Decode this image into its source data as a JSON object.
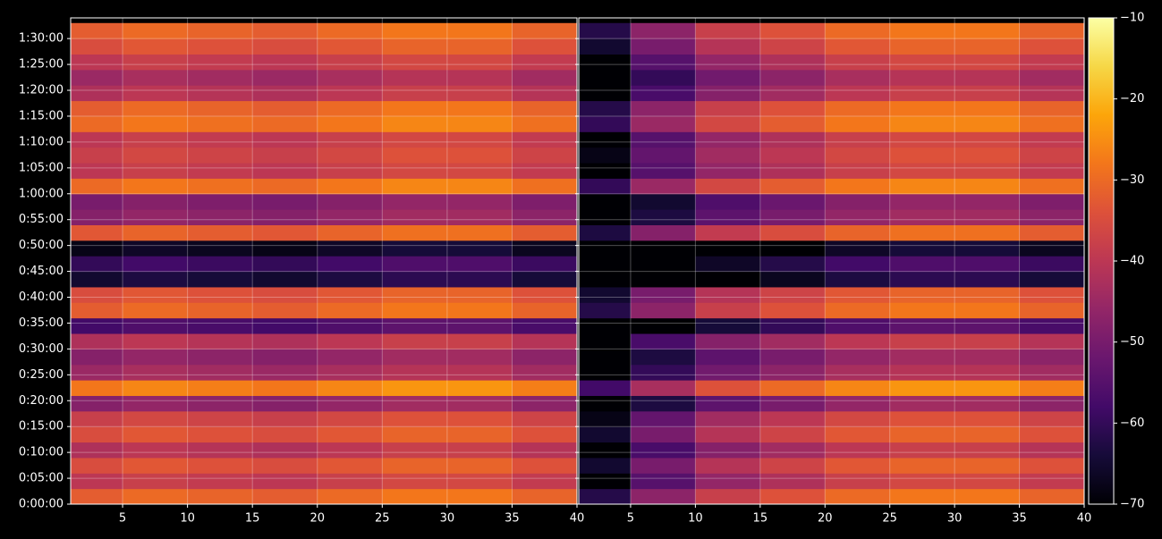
{
  "chart_data": {
    "type": "heatmap",
    "colormap": "inferno",
    "grid": true,
    "x_edges": [
      1,
      5,
      10,
      15,
      20,
      25,
      30,
      35,
      40
    ],
    "y_edges": [
      0,
      180,
      360,
      540,
      720,
      900,
      1080,
      1260,
      1440,
      1620,
      1800,
      1980,
      2160,
      2340,
      2520,
      2700,
      2880,
      3060,
      3240,
      3420,
      3600,
      3780,
      3960,
      4140,
      4320,
      4500,
      4680,
      4860,
      5040,
      5220,
      5400,
      5580
    ],
    "xlim": [
      1,
      40
    ],
    "xticks": [
      5,
      10,
      15,
      20,
      25,
      30,
      35,
      40
    ],
    "ylim": [
      0,
      5640
    ],
    "yticks": [
      {
        "value": 0,
        "label": "0:00:00"
      },
      {
        "value": 300,
        "label": "0:05:00"
      },
      {
        "value": 600,
        "label": "0:10:00"
      },
      {
        "value": 900,
        "label": "0:15:00"
      },
      {
        "value": 1200,
        "label": "0:20:00"
      },
      {
        "value": 1500,
        "label": "0:25:00"
      },
      {
        "value": 1800,
        "label": "0:30:00"
      },
      {
        "value": 2100,
        "label": "0:35:00"
      },
      {
        "value": 2400,
        "label": "0:40:00"
      },
      {
        "value": 2700,
        "label": "0:45:00"
      },
      {
        "value": 3000,
        "label": "0:50:00"
      },
      {
        "value": 3300,
        "label": "0:55:00"
      },
      {
        "value": 3600,
        "label": "1:00:00"
      },
      {
        "value": 3900,
        "label": "1:05:00"
      },
      {
        "value": 4200,
        "label": "1:10:00"
      },
      {
        "value": 4500,
        "label": "1:15:00"
      },
      {
        "value": 4800,
        "label": "1:20:00"
      },
      {
        "value": 5100,
        "label": "1:25:00"
      },
      {
        "value": 5400,
        "label": "1:30:00"
      }
    ],
    "clim": [
      -70,
      -10
    ],
    "cticks": [
      {
        "value": -10,
        "label": "−10"
      },
      {
        "value": -20,
        "label": "−20"
      },
      {
        "value": -30,
        "label": "−30"
      },
      {
        "value": -40,
        "label": "−40"
      },
      {
        "value": -50,
        "label": "−50"
      },
      {
        "value": -60,
        "label": "−60"
      },
      {
        "value": -70,
        "label": "−70"
      }
    ],
    "panels": [
      {
        "z": [
          [
            -32,
            -30,
            -31,
            -32,
            -30,
            -28,
            -28,
            -31
          ],
          [
            -40,
            -38,
            -39,
            -40,
            -38,
            -36,
            -36,
            -39
          ],
          [
            -35,
            -33,
            -34,
            -35,
            -33,
            -31,
            -31,
            -34
          ],
          [
            -42,
            -40,
            -41,
            -42,
            -40,
            -38,
            -38,
            -41
          ],
          [
            -35,
            -33,
            -34,
            -35,
            -33,
            -31,
            -31,
            -34
          ],
          [
            -38,
            -36,
            -37,
            -38,
            -36,
            -34,
            -34,
            -37
          ],
          [
            -48,
            -46,
            -47,
            -48,
            -46,
            -44,
            -44,
            -47
          ],
          [
            -28,
            -26,
            -27,
            -28,
            -26,
            -24,
            -24,
            -27
          ],
          [
            -45,
            -43,
            -44,
            -45,
            -43,
            -41,
            -41,
            -44
          ],
          [
            -48,
            -46,
            -47,
            -48,
            -46,
            -44,
            -44,
            -47
          ],
          [
            -42,
            -40,
            -41,
            -42,
            -40,
            -38,
            -38,
            -41
          ],
          [
            -58,
            -56,
            -57,
            -58,
            -56,
            -54,
            -54,
            -57
          ],
          [
            -32,
            -30,
            -31,
            -32,
            -30,
            -28,
            -28,
            -31
          ],
          [
            -35,
            -33,
            -34,
            -35,
            -33,
            -31,
            -31,
            -34
          ],
          [
            -65,
            -63,
            -64,
            -65,
            -63,
            -61,
            -61,
            -64
          ],
          [
            -60,
            -58,
            -59,
            -60,
            -58,
            -56,
            -56,
            -59
          ],
          [
            -68,
            -66,
            -67,
            -68,
            -66,
            -64,
            -64,
            -67
          ],
          [
            -33,
            -31,
            -32,
            -33,
            -31,
            -29,
            -29,
            -32
          ],
          [
            -48,
            -46,
            -47,
            -48,
            -46,
            -44,
            -44,
            -47
          ],
          [
            -50,
            -48,
            -49,
            -50,
            -48,
            -46,
            -46,
            -49
          ],
          [
            -30,
            -28,
            -29,
            -30,
            -28,
            -26,
            -26,
            -29
          ],
          [
            -40,
            -38,
            -39,
            -40,
            -38,
            -36,
            -36,
            -39
          ],
          [
            -38,
            -36,
            -37,
            -38,
            -36,
            -34,
            -34,
            -37
          ],
          [
            -40,
            -38,
            -39,
            -40,
            -38,
            -36,
            -36,
            -39
          ],
          [
            -30,
            -28,
            -29,
            -30,
            -28,
            -26,
            -26,
            -29
          ],
          [
            -32,
            -30,
            -31,
            -32,
            -30,
            -28,
            -28,
            -31
          ],
          [
            -42,
            -40,
            -41,
            -42,
            -40,
            -38,
            -38,
            -41
          ],
          [
            -45,
            -43,
            -44,
            -45,
            -43,
            -41,
            -41,
            -44
          ],
          [
            -40,
            -38,
            -39,
            -40,
            -38,
            -36,
            -36,
            -39
          ],
          [
            -35,
            -33,
            -34,
            -35,
            -33,
            -31,
            -31,
            -34
          ],
          [
            -32,
            -30,
            -31,
            -32,
            -30,
            -28,
            -28,
            -31
          ]
        ]
      },
      {
        "z": [
          [
            -62,
            -47,
            -38,
            -34,
            -30,
            -28,
            -28,
            -31
          ],
          [
            -70,
            -55,
            -46,
            -42,
            -38,
            -36,
            -36,
            -39
          ],
          [
            -65,
            -50,
            -41,
            -37,
            -33,
            -31,
            -31,
            -34
          ],
          [
            -70,
            -57,
            -48,
            -44,
            -40,
            -38,
            -38,
            -41
          ],
          [
            -65,
            -50,
            -41,
            -37,
            -33,
            -31,
            -31,
            -34
          ],
          [
            -68,
            -53,
            -44,
            -40,
            -36,
            -34,
            -34,
            -37
          ],
          [
            -70,
            -63,
            -54,
            -50,
            -46,
            -44,
            -44,
            -47
          ],
          [
            -58,
            -43,
            -34,
            -30,
            -26,
            -24,
            -24,
            -27
          ],
          [
            -70,
            -60,
            -51,
            -47,
            -43,
            -41,
            -41,
            -44
          ],
          [
            -70,
            -63,
            -54,
            -50,
            -46,
            -44,
            -44,
            -47
          ],
          [
            -70,
            -57,
            -48,
            -44,
            -40,
            -38,
            -38,
            -41
          ],
          [
            -70,
            -70,
            -64,
            -60,
            -56,
            -54,
            -54,
            -57
          ],
          [
            -62,
            -47,
            -38,
            -34,
            -30,
            -28,
            -28,
            -31
          ],
          [
            -65,
            -50,
            -41,
            -37,
            -33,
            -31,
            -31,
            -34
          ],
          [
            -70,
            -70,
            -70,
            -67,
            -63,
            -61,
            -61,
            -64
          ],
          [
            -70,
            -70,
            -66,
            -62,
            -58,
            -56,
            -56,
            -59
          ],
          [
            -70,
            -70,
            -70,
            -70,
            -66,
            -64,
            -64,
            -67
          ],
          [
            -63,
            -48,
            -39,
            -35,
            -31,
            -29,
            -29,
            -32
          ],
          [
            -70,
            -63,
            -54,
            -50,
            -46,
            -44,
            -44,
            -47
          ],
          [
            -70,
            -65,
            -56,
            -52,
            -48,
            -46,
            -46,
            -49
          ],
          [
            -60,
            -45,
            -36,
            -32,
            -28,
            -26,
            -26,
            -29
          ],
          [
            -70,
            -55,
            -46,
            -42,
            -38,
            -36,
            -36,
            -39
          ],
          [
            -68,
            -53,
            -44,
            -40,
            -36,
            -34,
            -34,
            -37
          ],
          [
            -70,
            -55,
            -46,
            -42,
            -38,
            -36,
            -36,
            -39
          ],
          [
            -60,
            -45,
            -36,
            -32,
            -28,
            -26,
            -26,
            -29
          ],
          [
            -62,
            -47,
            -38,
            -34,
            -30,
            -28,
            -28,
            -31
          ],
          [
            -70,
            -57,
            -48,
            -44,
            -40,
            -38,
            -38,
            -41
          ],
          [
            -70,
            -60,
            -51,
            -47,
            -43,
            -41,
            -41,
            -44
          ],
          [
            -70,
            -55,
            -46,
            -42,
            -38,
            -36,
            -36,
            -39
          ],
          [
            -65,
            -50,
            -41,
            -37,
            -33,
            -31,
            -31,
            -34
          ],
          [
            -62,
            -47,
            -38,
            -34,
            -30,
            -28,
            -28,
            -31
          ]
        ]
      }
    ]
  }
}
